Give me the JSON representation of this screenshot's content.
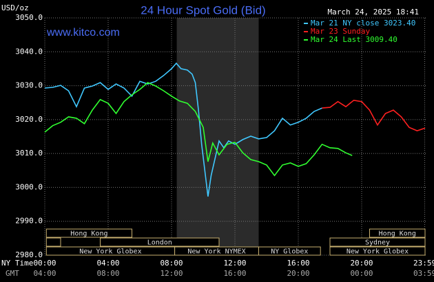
{
  "chart_data": {
    "type": "line",
    "title": "24 Hour Spot Gold (Bid)",
    "y_label": "USD/oz",
    "timestamp": "March 24, 2025 18:41",
    "watermark": "www.kitco.com",
    "x_label": "NY Time",
    "x2_label": "GMT",
    "xlim": [
      0,
      24
    ],
    "ylim": [
      2980,
      3050
    ],
    "yticks": [
      {
        "value": 2980,
        "label": "2980.0"
      },
      {
        "value": 2990,
        "label": "2990.0"
      },
      {
        "value": 3000,
        "label": "3000.0"
      },
      {
        "value": 3010,
        "label": "3010.0"
      },
      {
        "value": 3020,
        "label": "3020.0"
      },
      {
        "value": 3030,
        "label": "3030.0"
      },
      {
        "value": 3040,
        "label": "3040.0"
      },
      {
        "value": 3050,
        "label": "3050.0"
      }
    ],
    "xticks": [
      {
        "value": 0,
        "label": "00:00"
      },
      {
        "value": 4,
        "label": "04:00"
      },
      {
        "value": 8,
        "label": "08:00"
      },
      {
        "value": 12,
        "label": "12:00"
      },
      {
        "value": 16,
        "label": "16:00"
      },
      {
        "value": 20,
        "label": "20:00"
      },
      {
        "value": 23.98,
        "label": "23:59"
      }
    ],
    "gmt_labels": [
      "04:00",
      "08:00",
      "12:00",
      "16:00",
      "20:00",
      "00:00",
      "03:59"
    ],
    "grid": true,
    "shaded": [
      8.33,
      13.5
    ],
    "sessions": [
      {
        "label": "Hong Kong",
        "row": 0,
        "start": 0.1,
        "end": 5.5
      },
      {
        "label": "Hong Kong",
        "row": 0,
        "start": 20.5,
        "end": 24
      },
      {
        "label": null,
        "row": 1,
        "start": 0.1,
        "end": 1
      },
      {
        "label": "London",
        "row": 1,
        "start": 3.5,
        "end": 11
      },
      {
        "label": "Sydney",
        "row": 1,
        "start": 18,
        "end": 24
      },
      {
        "label": "New York Globex",
        "row": 2,
        "start": 0.1,
        "end": 8.2
      },
      {
        "label": "New York NYMEX",
        "row": 2,
        "start": 8.2,
        "end": 13.5
      },
      {
        "label": "NY Globex",
        "row": 2,
        "start": 13.5,
        "end": 17.4
      },
      {
        "label": "New York Globex",
        "row": 2,
        "start": 18,
        "end": 24
      }
    ],
    "series": [
      {
        "name": "Mar 21 NY close 3023.40",
        "color": "#40c8ff",
        "x": [
          0,
          0.5,
          1,
          1.5,
          2,
          2.5,
          3,
          3.5,
          4,
          4.5,
          5,
          5.5,
          6,
          6.5,
          7,
          7.5,
          8,
          8.3,
          8.6,
          9,
          9.3,
          9.5,
          9.7,
          9.9,
          10.1,
          10.3,
          10.5,
          10.8,
          11,
          11.3,
          11.6,
          12,
          12.5,
          13,
          13.5,
          14,
          14.5,
          15,
          15.5,
          16,
          16.5,
          17,
          17.5
        ],
        "values": [
          3029.3,
          3029.5,
          3030.1,
          3028.5,
          3023.8,
          3029.3,
          3029.9,
          3030.9,
          3028.9,
          3030.5,
          3029.3,
          3026.9,
          3031.3,
          3030.5,
          3031.3,
          3033.0,
          3035.0,
          3036.6,
          3035.0,
          3034.6,
          3033.4,
          3030.9,
          3022.8,
          3012.7,
          3005.0,
          2997.3,
          3003.5,
          3009.6,
          3013.7,
          3011.7,
          3013.7,
          3012.7,
          3014.1,
          3015.1,
          3014.3,
          3014.7,
          3016.7,
          3020.4,
          3018.4,
          3019.2,
          3020.4,
          3022.4,
          3023.4
        ]
      },
      {
        "name": "Mar 23 Sunday",
        "color": "#ff2020",
        "x": [
          17.5,
          18,
          18.5,
          19,
          19.5,
          20,
          20.5,
          21,
          21.5,
          22,
          22.5,
          23,
          23.5,
          24
        ],
        "values": [
          3023.4,
          3023.6,
          3025.3,
          3023.8,
          3025.7,
          3025.3,
          3022.8,
          3018.4,
          3021.8,
          3022.8,
          3020.8,
          3017.7,
          3016.7,
          3017.5
        ]
      },
      {
        "name": "Mar 24 Last 3009.40",
        "color": "#30ff30",
        "x": [
          0,
          0.5,
          1,
          1.5,
          2,
          2.5,
          3,
          3.5,
          4,
          4.5,
          5,
          5.5,
          6,
          6.5,
          7,
          7.5,
          8,
          8.5,
          9,
          9.5,
          10,
          10.3,
          10.6,
          11,
          11.5,
          12,
          12.5,
          13,
          13.5,
          14,
          14.5,
          15,
          15.5,
          16,
          16.5,
          17,
          17.5,
          18,
          18.5,
          19,
          19.4
        ],
        "values": [
          3016.3,
          3018.2,
          3019.2,
          3020.8,
          3020.4,
          3018.8,
          3022.8,
          3025.9,
          3024.8,
          3021.8,
          3025.3,
          3027.3,
          3028.9,
          3030.9,
          3029.9,
          3028.5,
          3026.9,
          3025.5,
          3024.8,
          3022.4,
          3017.7,
          3007.6,
          3013.1,
          3009.6,
          3012.7,
          3013.3,
          3010.2,
          3008.2,
          3007.6,
          3006.6,
          3003.5,
          3006.6,
          3007.2,
          3006.2,
          3007.0,
          3009.6,
          3012.7,
          3011.7,
          3011.5,
          3010.2,
          3009.4
        ]
      }
    ]
  }
}
